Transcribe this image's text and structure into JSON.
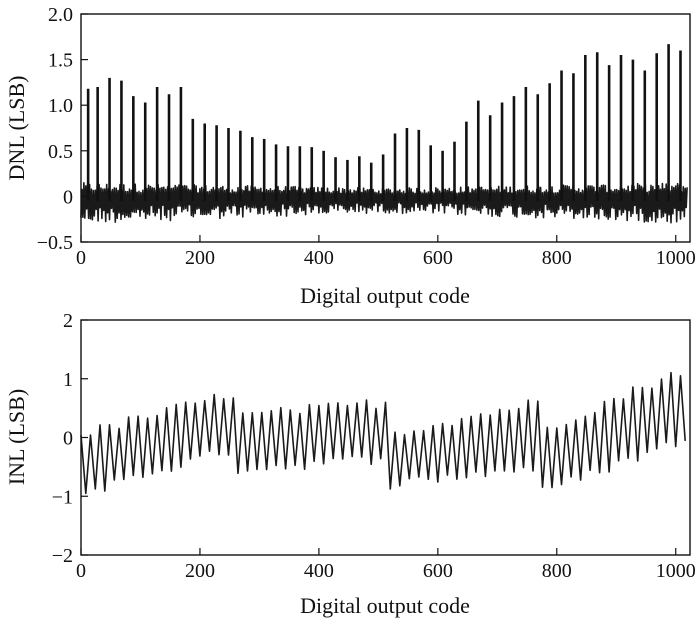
{
  "chart_data": [
    {
      "type": "line",
      "id": "dnl",
      "title": "",
      "xlabel": "Digital output code",
      "ylabel": "DNL (LSB)",
      "xlim": [
        0,
        1024
      ],
      "ylim": [
        -0.5,
        2.0
      ],
      "xticks": [
        "0",
        "200",
        "400",
        "600",
        "800",
        "1000"
      ],
      "yticks": [
        "−0.5",
        "0",
        "0.5",
        "1.0",
        "1.5",
        "2.0"
      ],
      "xtick_values": [
        0,
        200,
        400,
        600,
        800,
        1000
      ],
      "ytick_values": [
        -0.5,
        0,
        0.5,
        1.0,
        1.5,
        2.0
      ],
      "grid": false,
      "color": "#111111",
      "noise_band": [
        -0.3,
        0.15
      ],
      "series": [
        {
          "spike_x": [
            12,
            28,
            48,
            68,
            88,
            108,
            128,
            148,
            168,
            188,
            208,
            228,
            248,
            268,
            288,
            308,
            328,
            348,
            368,
            388,
            408,
            428,
            448,
            468,
            488,
            508,
            528,
            548,
            568,
            588,
            608,
            628,
            648,
            668,
            688,
            708,
            728,
            748,
            768,
            788,
            808,
            828,
            848,
            868,
            888,
            908,
            928,
            948,
            968,
            988,
            1008
          ],
          "spike_y": [
            1.18,
            1.2,
            1.3,
            1.27,
            1.1,
            1.03,
            1.2,
            1.12,
            1.2,
            0.85,
            0.8,
            0.78,
            0.75,
            0.72,
            0.65,
            0.63,
            0.57,
            0.55,
            0.55,
            0.54,
            0.5,
            0.43,
            0.4,
            0.44,
            0.37,
            0.46,
            0.69,
            0.75,
            0.73,
            0.56,
            0.5,
            0.6,
            0.82,
            1.05,
            0.89,
            1.03,
            1.1,
            1.2,
            1.12,
            1.24,
            1.38,
            1.35,
            1.55,
            1.58,
            1.44,
            1.55,
            1.5,
            1.38,
            1.57,
            1.67,
            1.6
          ]
        }
      ]
    },
    {
      "type": "line",
      "id": "inl",
      "title": "",
      "xlabel": "Digital output code",
      "ylabel": "INL (LSB)",
      "xlim": [
        0,
        1024
      ],
      "ylim": [
        -2,
        2
      ],
      "xticks": [
        "0",
        "200",
        "400",
        "600",
        "800",
        "1000"
      ],
      "yticks": [
        "−2",
        "−1",
        "0",
        "1",
        "2"
      ],
      "xtick_values": [
        0,
        200,
        400,
        600,
        800,
        1000
      ],
      "ytick_values": [
        -2,
        -1,
        0,
        1,
        2
      ],
      "grid": false,
      "color": "#111111",
      "series": [
        {
          "x": [
            0,
            256,
            257,
            512,
            513,
            768,
            769,
            1024
          ],
          "upper": [
            0.05,
            0.75,
            0.35,
            0.6,
            0.05,
            0.6,
            0.1,
            1.2
          ],
          "lower": [
            -0.95,
            -0.2,
            -0.55,
            -0.35,
            -0.8,
            -0.5,
            -0.95,
            0.0
          ]
        }
      ]
    }
  ]
}
